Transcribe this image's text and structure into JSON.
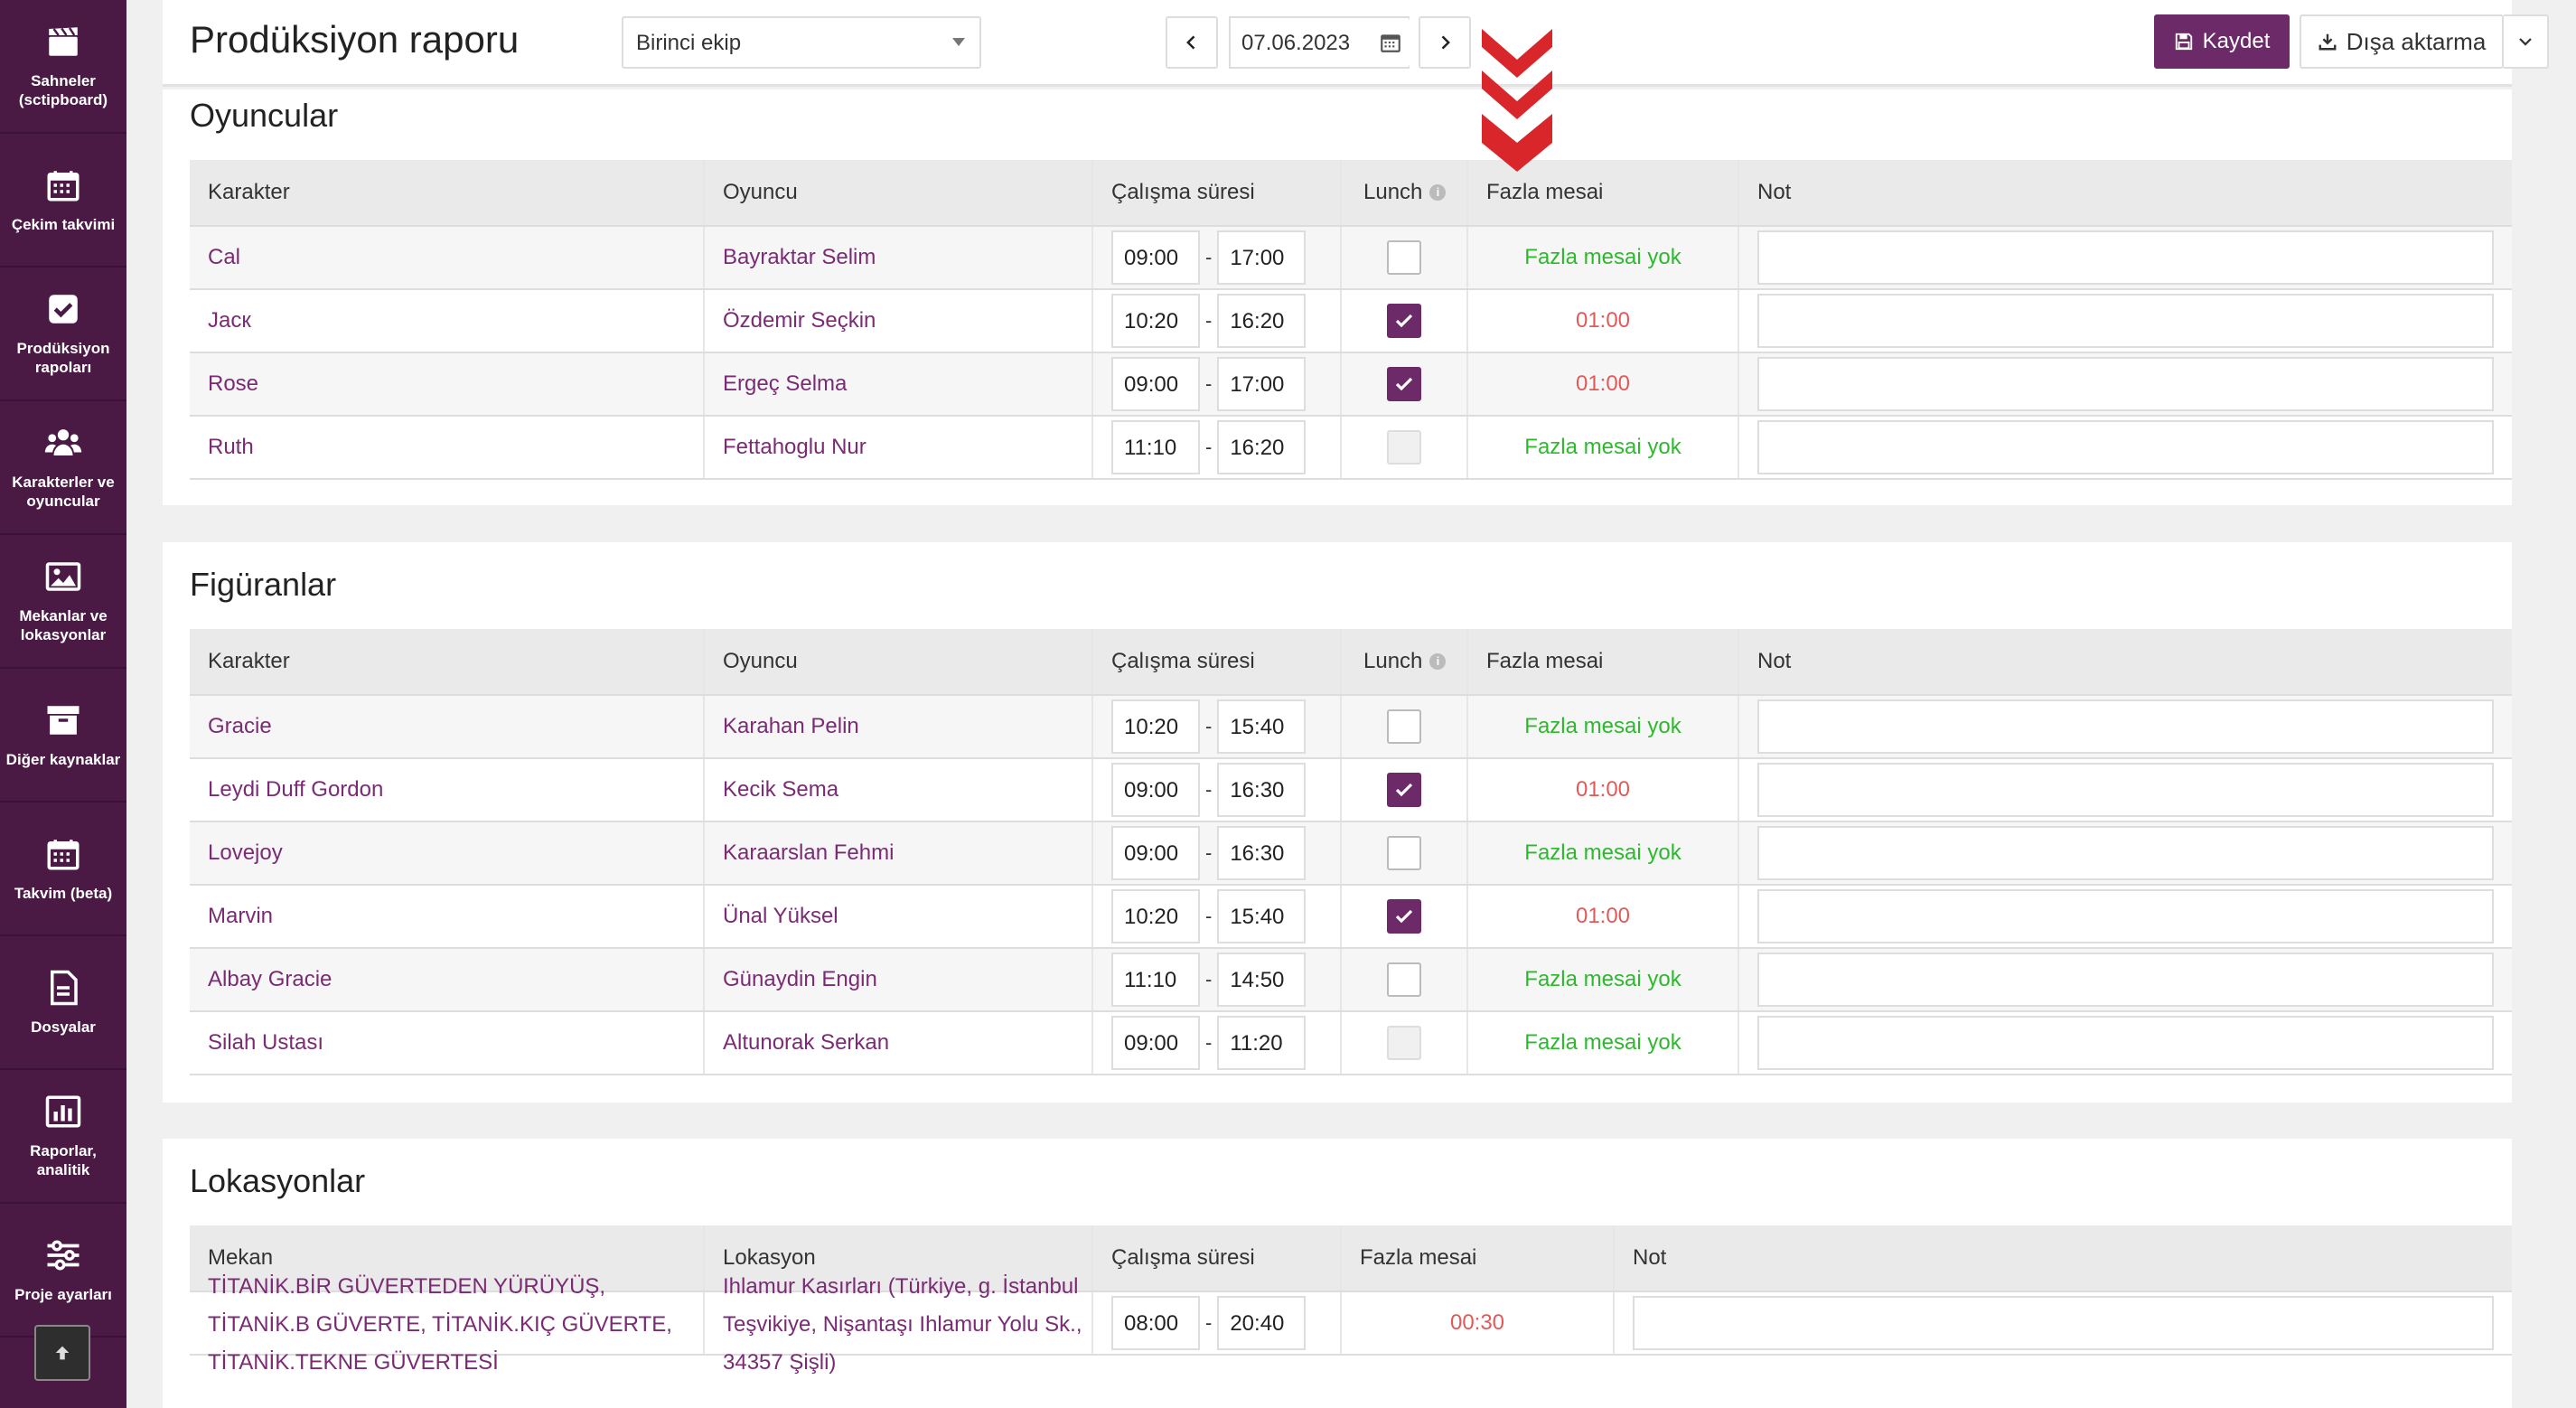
{
  "sidebar": {
    "items": [
      {
        "label": "Sahneler (sctipboard)",
        "icon": "clapperboard-icon"
      },
      {
        "label": "Çekim takvimi",
        "icon": "calendar-icon"
      },
      {
        "label": "Prodüksiyon rapoları",
        "icon": "checkbox-icon"
      },
      {
        "label": "Karakterler ve oyuncular",
        "icon": "users-icon"
      },
      {
        "label": "Mekanlar ve lokasyonlar",
        "icon": "image-icon"
      },
      {
        "label": "Diğer kaynaklar",
        "icon": "archive-icon"
      },
      {
        "label": "Takvim (beta)",
        "icon": "calendar-grid-icon"
      },
      {
        "label": "Dosyalar",
        "icon": "file-icon"
      },
      {
        "label": "Raporlar, analitik",
        "icon": "bar-chart-icon"
      },
      {
        "label": "Proje ayarları",
        "icon": "sliders-icon"
      }
    ]
  },
  "header": {
    "title": "Prodüksiyon raporu",
    "team": "Birinci ekip",
    "date": "07.06.2023",
    "save_label": "Kaydet",
    "export_label": "Dışa aktarma"
  },
  "actors": {
    "title": "Oyuncular",
    "columns": [
      "Karakter",
      "Oyuncu",
      "Çalışma süresi",
      "Lunch",
      "Fazla mesai",
      "Not"
    ],
    "rows": [
      {
        "character": "Cal",
        "actor": "Bayraktar Selim",
        "start": "09:00",
        "end": "17:00",
        "lunch": "unchecked",
        "overtime": "Fazla mesai yok"
      },
      {
        "character": "Jacк",
        "actor": "Özdemir Seçkin",
        "start": "10:20",
        "end": "16:20",
        "lunch": "checked",
        "overtime": "01:00"
      },
      {
        "character": "Rose",
        "actor": "Ergeç Selma",
        "start": "09:00",
        "end": "17:00",
        "lunch": "checked",
        "overtime": "01:00"
      },
      {
        "character": "Ruth",
        "actor": "Fettahoglu Nur",
        "start": "11:10",
        "end": "16:20",
        "lunch": "disabled",
        "overtime": "Fazla mesai yok"
      }
    ]
  },
  "extras": {
    "title": "Figüranlar",
    "columns": [
      "Karakter",
      "Oyuncu",
      "Çalışma süresi",
      "Lunch",
      "Fazla mesai",
      "Not"
    ],
    "rows": [
      {
        "character": "Gracie",
        "actor": "Karahan Pelin",
        "start": "10:20",
        "end": "15:40",
        "lunch": "unchecked",
        "overtime": "Fazla mesai yok"
      },
      {
        "character": "Leydi Duff Gordon",
        "actor": "Kecik Sema",
        "start": "09:00",
        "end": "16:30",
        "lunch": "checked",
        "overtime": "01:00"
      },
      {
        "character": "Lovejoy",
        "actor": "Karaarslan Fehmi",
        "start": "09:00",
        "end": "16:30",
        "lunch": "unchecked",
        "overtime": "Fazla mesai yok"
      },
      {
        "character": "Marvin",
        "actor": "Ünal Yüksel",
        "start": "10:20",
        "end": "15:40",
        "lunch": "checked",
        "overtime": "01:00"
      },
      {
        "character": "Albay Gracie",
        "actor": "Günaydin Engin",
        "start": "11:10",
        "end": "14:50",
        "lunch": "unchecked",
        "overtime": "Fazla mesai yok"
      },
      {
        "character": "Silah Ustası",
        "actor": "Altunorak Serkan",
        "start": "09:00",
        "end": "11:20",
        "lunch": "disabled",
        "overtime": "Fazla mesai yok"
      }
    ]
  },
  "locations": {
    "title": "Lokasyonlar",
    "columns": [
      "Mekan",
      "Lokasyon",
      "Çalışma süresi",
      "Fazla mesai",
      "Not"
    ],
    "rows": [
      {
        "venue": "TİTANİK.BİR GÜVERTEDEN YÜRÜYÜŞ, TİTANİK.B GÜVERTE, TİTANİK.KIÇ GÜVERTE, TİTANİK.TEKNE GÜVERTESİ",
        "location": "Ihlamur Kasırları (Türkiye, g. İstanbul Teşvikiye, Nişantaşı Ihlamur Yolu Sk., 34357 Şişli)",
        "start": "08:00",
        "end": "20:40",
        "overtime": "00:30"
      }
    ]
  },
  "colors": {
    "sidebar": "#4a1a45",
    "accent": "#6d2a68",
    "link": "#7a2b74",
    "ok": "#2eb82e",
    "warn": "#e05a5a",
    "arrow": "#d9262b"
  }
}
